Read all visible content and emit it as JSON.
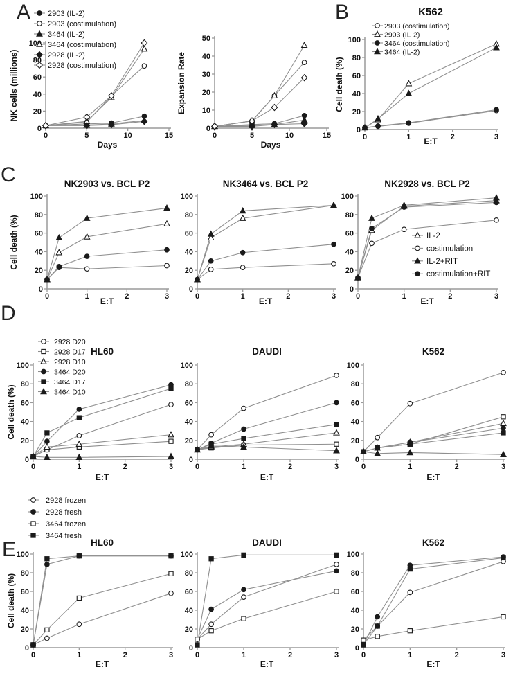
{
  "figure": {
    "panel_labels": {
      "A": "A",
      "B": "B",
      "C": "C",
      "D": "D",
      "E": "E"
    },
    "colors": {
      "background": "#ffffff",
      "line": "#8f8f8f",
      "axis": "#9a9a9a",
      "marker": "#1a1a1a",
      "text": "#111111"
    }
  },
  "chart_data": [
    {
      "id": "A1",
      "panel": "A",
      "type": "line",
      "title": "",
      "xlabel": "Days",
      "ylabel": "NK cells (millions)",
      "xlim": [
        0,
        15
      ],
      "ylim": [
        0,
        100
      ],
      "xticks": [
        0,
        5,
        10,
        15
      ],
      "yticks": [
        0,
        20,
        40,
        60,
        80,
        100
      ],
      "x": [
        0,
        5,
        8,
        12
      ],
      "show_legend": true,
      "legend_position": "top-left",
      "series": [
        {
          "name": "2903 (IL-2)",
          "marker": "circle",
          "fill": "filled",
          "values": [
            3,
            5,
            6,
            14
          ]
        },
        {
          "name": "2903 (costimulation)",
          "marker": "circle",
          "fill": "open",
          "values": [
            3,
            7,
            38,
            73
          ]
        },
        {
          "name": "3464 (IL-2)",
          "marker": "triangle",
          "fill": "filled",
          "values": [
            3,
            3.5,
            5,
            9
          ]
        },
        {
          "name": "3464 (costimulation)",
          "marker": "triangle",
          "fill": "open",
          "values": [
            3,
            8,
            36,
            93
          ]
        },
        {
          "name": "2928 (IL-2)",
          "marker": "diamond",
          "fill": "filled",
          "values": [
            3,
            3,
            4,
            8
          ]
        },
        {
          "name": "2928 (costimulation)",
          "marker": "diamond",
          "fill": "open",
          "values": [
            3,
            13,
            38,
            100
          ]
        }
      ]
    },
    {
      "id": "A2",
      "panel": "A",
      "type": "line",
      "title": "",
      "xlabel": "Days",
      "ylabel": "Expansion Rate",
      "xlim": [
        0,
        15
      ],
      "ylim": [
        0,
        50
      ],
      "xticks": [
        0,
        5,
        10,
        15
      ],
      "yticks": [
        0,
        10,
        20,
        30,
        40,
        50
      ],
      "x": [
        0,
        5,
        8,
        12
      ],
      "show_legend": false,
      "series": [
        {
          "name": "2903 (IL-2)",
          "marker": "circle",
          "fill": "filled",
          "values": [
            1,
            2,
            2.5,
            7
          ]
        },
        {
          "name": "2903 (costimulation)",
          "marker": "circle",
          "fill": "open",
          "values": [
            1,
            4,
            18,
            36.5
          ]
        },
        {
          "name": "3464 (IL-2)",
          "marker": "triangle",
          "fill": "filled",
          "values": [
            1,
            1.5,
            2,
            4.5
          ]
        },
        {
          "name": "3464 (costimulation)",
          "marker": "triangle",
          "fill": "open",
          "values": [
            1,
            4,
            18,
            46
          ]
        },
        {
          "name": "2928 (IL-2)",
          "marker": "diamond",
          "fill": "filled",
          "values": [
            1,
            1,
            2,
            2.5
          ]
        },
        {
          "name": "2928 (costimulation)",
          "marker": "diamond",
          "fill": "open",
          "values": [
            1,
            4,
            11.5,
            28
          ]
        }
      ]
    },
    {
      "id": "B",
      "panel": "B",
      "type": "line",
      "title": "K562",
      "xlabel": "E:T",
      "ylabel": "Cell death (%)",
      "xlim": [
        0,
        3
      ],
      "ylim": [
        0,
        100
      ],
      "xticks": [
        0,
        1,
        2,
        3
      ],
      "yticks": [
        0,
        20,
        40,
        60,
        80,
        100
      ],
      "x": [
        0,
        0.3,
        1,
        3
      ],
      "show_legend": true,
      "legend_position": "top-left",
      "series": [
        {
          "name": "2903 (costimulation)",
          "marker": "circle",
          "fill": "open",
          "values": [
            2,
            3.5,
            7,
            21
          ]
        },
        {
          "name": "2903 (IL-2)",
          "marker": "triangle",
          "fill": "open",
          "values": [
            2,
            11,
            51,
            95
          ]
        },
        {
          "name": "3464 (costimulation)",
          "marker": "circle",
          "fill": "filled",
          "values": [
            2,
            4,
            7.5,
            22
          ]
        },
        {
          "name": "3464 (IL-2)",
          "marker": "triangle",
          "fill": "filled",
          "values": [
            2,
            12,
            40,
            91
          ]
        }
      ]
    },
    {
      "id": "C1",
      "panel": "C",
      "type": "line",
      "title": "NK2903 vs. BCL P2",
      "xlabel": "E:T",
      "ylabel": "Cell death (%)",
      "xlim": [
        0,
        3
      ],
      "ylim": [
        0,
        100
      ],
      "xticks": [
        0,
        1,
        2,
        3
      ],
      "yticks": [
        0,
        20,
        40,
        60,
        80,
        100
      ],
      "x": [
        0,
        0.3,
        1,
        3
      ],
      "show_legend": false,
      "series": [
        {
          "name": "IL-2",
          "marker": "triangle",
          "fill": "open",
          "values": [
            10,
            39,
            56,
            70
          ]
        },
        {
          "name": "costimulation",
          "marker": "circle",
          "fill": "open",
          "values": [
            10,
            23,
            21.5,
            25
          ]
        },
        {
          "name": "IL-2+RIT",
          "marker": "triangle",
          "fill": "filled",
          "values": [
            10,
            55,
            76,
            87
          ]
        },
        {
          "name": "costimulation+RIT",
          "marker": "circle",
          "fill": "filled",
          "values": [
            10,
            24,
            35,
            42
          ]
        }
      ]
    },
    {
      "id": "C2",
      "panel": "C",
      "type": "line",
      "title": "NK3464 vs. BCL P2",
      "xlabel": "E:T",
      "ylabel": "",
      "xlim": [
        0,
        3
      ],
      "ylim": [
        0,
        100
      ],
      "xticks": [
        0,
        1,
        2,
        3
      ],
      "yticks": [
        0,
        20,
        40,
        60,
        80,
        100
      ],
      "x": [
        0,
        0.3,
        1,
        3
      ],
      "show_legend": false,
      "series": [
        {
          "name": "IL-2",
          "marker": "triangle",
          "fill": "open",
          "values": [
            10,
            55,
            76,
            90
          ]
        },
        {
          "name": "costimulation",
          "marker": "circle",
          "fill": "open",
          "values": [
            10,
            21,
            23,
            27
          ]
        },
        {
          "name": "IL-2+RIT",
          "marker": "triangle",
          "fill": "filled",
          "values": [
            10,
            59,
            84,
            90
          ]
        },
        {
          "name": "costimulation+RIT",
          "marker": "circle",
          "fill": "filled",
          "values": [
            10,
            30,
            39,
            48
          ]
        }
      ]
    },
    {
      "id": "C3",
      "panel": "C",
      "type": "line",
      "title": "NK2928 vs. BCL P2",
      "xlabel": "E:T",
      "ylabel": "",
      "xlim": [
        0,
        3
      ],
      "ylim": [
        0,
        100
      ],
      "xticks": [
        0,
        1,
        2,
        3
      ],
      "yticks": [
        0,
        20,
        40,
        60,
        80,
        100
      ],
      "x": [
        0,
        0.3,
        1,
        3
      ],
      "show_legend": true,
      "legend_position": "inside-right",
      "series": [
        {
          "name": "IL-2",
          "marker": "triangle",
          "fill": "open",
          "values": [
            12,
            63,
            89,
            95
          ]
        },
        {
          "name": "costimulation",
          "marker": "circle",
          "fill": "open",
          "values": [
            12,
            49,
            64,
            74
          ]
        },
        {
          "name": "IL-2+RIT",
          "marker": "triangle",
          "fill": "filled",
          "values": [
            12,
            76,
            90,
            98
          ]
        },
        {
          "name": "costimulation+RIT",
          "marker": "circle",
          "fill": "filled",
          "values": [
            12,
            65,
            88,
            93
          ]
        }
      ]
    },
    {
      "id": "D1",
      "panel": "D",
      "type": "line",
      "title": "HL60",
      "xlabel": "E:T",
      "ylabel": "Cell death (%)",
      "xlim": [
        0,
        3
      ],
      "ylim": [
        0,
        100
      ],
      "xticks": [
        0,
        1,
        2,
        3
      ],
      "yticks": [
        0,
        20,
        40,
        60,
        80,
        100
      ],
      "x": [
        0,
        0.3,
        1,
        3
      ],
      "show_legend": true,
      "legend_position": "top-left",
      "series": [
        {
          "name": "2928 D20",
          "marker": "circle",
          "fill": "open",
          "values": [
            3,
            10,
            25,
            58
          ]
        },
        {
          "name": "2928 D17",
          "marker": "square",
          "fill": "open",
          "values": [
            3,
            10,
            13,
            19
          ]
        },
        {
          "name": "2928 D10",
          "marker": "triangle",
          "fill": "open",
          "values": [
            3,
            13,
            16,
            26
          ]
        },
        {
          "name": "3464 D20",
          "marker": "circle",
          "fill": "filled",
          "values": [
            3,
            19,
            53,
            79
          ]
        },
        {
          "name": "3464 D17",
          "marker": "square",
          "fill": "filled",
          "values": [
            3,
            28,
            44,
            75
          ]
        },
        {
          "name": "3464 D10",
          "marker": "triangle",
          "fill": "filled",
          "values": [
            3,
            2,
            2,
            3
          ]
        }
      ]
    },
    {
      "id": "D2",
      "panel": "D",
      "type": "line",
      "title": "DAUDI",
      "xlabel": "E:T",
      "ylabel": "",
      "xlim": [
        0,
        3
      ],
      "ylim": [
        0,
        100
      ],
      "xticks": [
        0,
        1,
        2,
        3
      ],
      "yticks": [
        0,
        20,
        40,
        60,
        80,
        100
      ],
      "x": [
        0,
        0.3,
        1,
        3
      ],
      "show_legend": false,
      "series": [
        {
          "name": "2928 D20",
          "marker": "circle",
          "fill": "open",
          "values": [
            10,
            26,
            54,
            89
          ]
        },
        {
          "name": "2928 D17",
          "marker": "square",
          "fill": "open",
          "values": [
            10,
            12,
            15,
            16
          ]
        },
        {
          "name": "2928 D10",
          "marker": "triangle",
          "fill": "open",
          "values": [
            10,
            13,
            16,
            28
          ]
        },
        {
          "name": "3464 D20",
          "marker": "circle",
          "fill": "filled",
          "values": [
            10,
            17,
            32,
            60
          ]
        },
        {
          "name": "3464 D17",
          "marker": "square",
          "fill": "filled",
          "values": [
            10,
            16,
            22,
            37
          ]
        },
        {
          "name": "3464 D10",
          "marker": "triangle",
          "fill": "filled",
          "values": [
            10,
            14,
            13,
            9
          ]
        }
      ]
    },
    {
      "id": "D3",
      "panel": "D",
      "type": "line",
      "title": "K562",
      "xlabel": "E:T",
      "ylabel": "",
      "xlim": [
        0,
        3
      ],
      "ylim": [
        0,
        100
      ],
      "xticks": [
        0,
        1,
        2,
        3
      ],
      "yticks": [
        0,
        20,
        40,
        60,
        80,
        100
      ],
      "x": [
        0,
        0.3,
        1,
        3
      ],
      "show_legend": false,
      "series": [
        {
          "name": "2928 D20",
          "marker": "circle",
          "fill": "open",
          "values": [
            8,
            23,
            59,
            92
          ]
        },
        {
          "name": "2928 D17",
          "marker": "square",
          "fill": "open",
          "values": [
            8,
            12,
            16,
            45
          ]
        },
        {
          "name": "2928 D10",
          "marker": "triangle",
          "fill": "open",
          "values": [
            8,
            12,
            18,
            38
          ]
        },
        {
          "name": "3464 D20",
          "marker": "circle",
          "fill": "filled",
          "values": [
            8,
            12,
            18,
            33
          ]
        },
        {
          "name": "3464 D17",
          "marker": "square",
          "fill": "filled",
          "values": [
            8,
            12,
            16,
            28
          ]
        },
        {
          "name": "3464 D10",
          "marker": "triangle",
          "fill": "filled",
          "values": [
            8,
            6,
            7,
            5
          ]
        }
      ]
    },
    {
      "id": "E1",
      "panel": "E",
      "type": "line",
      "title": "HL60",
      "xlabel": "E:T",
      "ylabel": "Cell death (%)",
      "xlim": [
        0,
        3
      ],
      "ylim": [
        0,
        100
      ],
      "xticks": [
        0,
        1,
        2,
        3
      ],
      "yticks": [
        0,
        20,
        40,
        60,
        80,
        100
      ],
      "x": [
        0,
        0.3,
        1,
        3
      ],
      "show_legend": true,
      "legend_position": "above",
      "series": [
        {
          "name": "2928 frozen",
          "marker": "circle",
          "fill": "open",
          "values": [
            3,
            10,
            25,
            58
          ]
        },
        {
          "name": "2928 fresh",
          "marker": "circle",
          "fill": "filled",
          "values": [
            3,
            89,
            98,
            98
          ]
        },
        {
          "name": "3464 frozen",
          "marker": "square",
          "fill": "open",
          "values": [
            3,
            19,
            53,
            79
          ]
        },
        {
          "name": "3464 fresh",
          "marker": "square",
          "fill": "filled",
          "values": [
            3,
            95,
            98,
            98
          ]
        }
      ]
    },
    {
      "id": "E2",
      "panel": "E",
      "type": "line",
      "title": "DAUDI",
      "xlabel": "E:T",
      "ylabel": "",
      "xlim": [
        0,
        3
      ],
      "ylim": [
        0,
        100
      ],
      "xticks": [
        0,
        1,
        2,
        3
      ],
      "yticks": [
        0,
        20,
        40,
        60,
        80,
        100
      ],
      "x": [
        0,
        0.3,
        1,
        3
      ],
      "show_legend": false,
      "series": [
        {
          "name": "2928 frozen",
          "marker": "circle",
          "fill": "open",
          "values": [
            9,
            25,
            54,
            89
          ]
        },
        {
          "name": "2928 fresh",
          "marker": "circle",
          "fill": "filled",
          "values": [
            9,
            41,
            62,
            82
          ]
        },
        {
          "name": "3464 frozen",
          "marker": "square",
          "fill": "open",
          "values": [
            9,
            18,
            31,
            60
          ]
        },
        {
          "name": "3464 fresh",
          "marker": "square",
          "fill": "filled",
          "values": [
            3,
            95,
            99,
            99
          ]
        }
      ]
    },
    {
      "id": "E3",
      "panel": "E",
      "type": "line",
      "title": "K562",
      "xlabel": "E:T",
      "ylabel": "",
      "xlim": [
        0,
        3
      ],
      "ylim": [
        0,
        100
      ],
      "xticks": [
        0,
        1,
        2,
        3
      ],
      "yticks": [
        0,
        20,
        40,
        60,
        80,
        100
      ],
      "x": [
        0,
        0.3,
        1,
        3
      ],
      "show_legend": false,
      "series": [
        {
          "name": "2928 frozen",
          "marker": "circle",
          "fill": "open",
          "values": [
            8,
            23,
            59,
            92
          ]
        },
        {
          "name": "2928 fresh",
          "marker": "circle",
          "fill": "filled",
          "values": [
            3,
            33,
            88,
            97
          ]
        },
        {
          "name": "3464 frozen",
          "marker": "square",
          "fill": "open",
          "values": [
            8,
            12,
            18,
            33
          ]
        },
        {
          "name": "3464 fresh",
          "marker": "square",
          "fill": "filled",
          "values": [
            3,
            23,
            84,
            96
          ]
        }
      ]
    }
  ]
}
